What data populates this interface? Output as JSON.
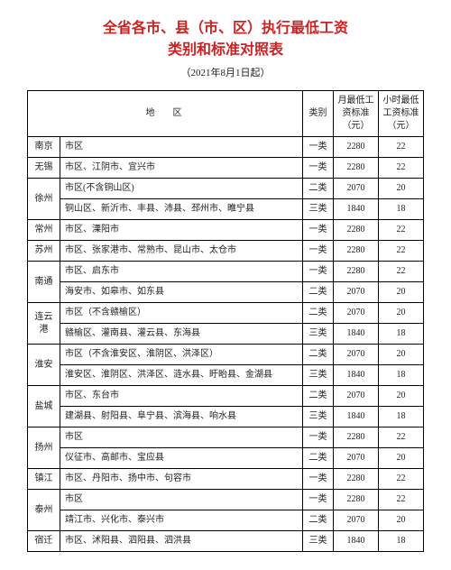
{
  "title_line1": "全省各市、县（市、区）执行最低工资",
  "title_line2": "类别和标准对照表",
  "subtitle": "（2021年8月1日起）",
  "headers": {
    "region": "地区",
    "category": "类别",
    "monthly": "月最低工资标准（元）",
    "hourly": "小时最低工资标准（元）"
  },
  "rows": [
    {
      "city": "南京",
      "area": "市区",
      "cat": "一类",
      "month": "2280",
      "hour": "22",
      "rowspan": 1
    },
    {
      "city": "无锡",
      "area": "市区、江阴市、宜兴市",
      "cat": "一类",
      "month": "2280",
      "hour": "22",
      "rowspan": 1
    },
    {
      "city": "徐州",
      "area": "市区(不含铜山区)",
      "cat": "二类",
      "month": "2070",
      "hour": "20",
      "rowspan": 2
    },
    {
      "city": "",
      "area": "铜山区、新沂市、丰县、沛县、邳州市、睢宁县",
      "cat": "三类",
      "month": "1840",
      "hour": "18"
    },
    {
      "city": "常州",
      "area": "市区、溧阳市",
      "cat": "一类",
      "month": "2280",
      "hour": "22",
      "rowspan": 1
    },
    {
      "city": "苏州",
      "area": "市区、张家港市、常熟市、昆山市、太仓市",
      "cat": "一类",
      "month": "2280",
      "hour": "22",
      "rowspan": 1
    },
    {
      "city": "南通",
      "area": "市区、启东市",
      "cat": "一类",
      "month": "2280",
      "hour": "22",
      "rowspan": 2
    },
    {
      "city": "",
      "area": "海安市、如皋市、如东县",
      "cat": "二类",
      "month": "2070",
      "hour": "20"
    },
    {
      "city": "连云港",
      "area": "市区（不含赣榆区）",
      "cat": "二类",
      "month": "2070",
      "hour": "20",
      "rowspan": 2
    },
    {
      "city": "",
      "area": "赣榆区、灌南县、灌云县、东海县",
      "cat": "三类",
      "month": "1840",
      "hour": "18"
    },
    {
      "city": "淮安",
      "area": "市区（不含淮安区、淮阴区、洪泽区）",
      "cat": "二类",
      "month": "2070",
      "hour": "20",
      "rowspan": 2
    },
    {
      "city": "",
      "area": "淮安区、淮阴区、洪泽区、涟水县、盱眙县、金湖县",
      "cat": "三类",
      "month": "1840",
      "hour": "18"
    },
    {
      "city": "盐城",
      "area": "市区、东台市",
      "cat": "二类",
      "month": "2070",
      "hour": "20",
      "rowspan": 2
    },
    {
      "city": "",
      "area": "建湖县、射阳县、阜宁县、滨海县、响水县",
      "cat": "三类",
      "month": "1840",
      "hour": "18"
    },
    {
      "city": "扬州",
      "area": "市区",
      "cat": "一类",
      "month": "2280",
      "hour": "22",
      "rowspan": 2
    },
    {
      "city": "",
      "area": "仪征市、高邮市、宝应县",
      "cat": "二类",
      "month": "2070",
      "hour": "20"
    },
    {
      "city": "镇江",
      "area": "市区、丹阳市、扬中市、句容市",
      "cat": "一类",
      "month": "2280",
      "hour": "22",
      "rowspan": 1
    },
    {
      "city": "泰州",
      "area": "市区",
      "cat": "一类",
      "month": "2280",
      "hour": "22",
      "rowspan": 2
    },
    {
      "city": "",
      "area": "靖江市、兴化市、泰兴市",
      "cat": "二类",
      "month": "2070",
      "hour": "20"
    },
    {
      "city": "宿迁",
      "area": "市区、沭阳县、泗阳县、泗洪县",
      "cat": "三类",
      "month": "1840",
      "hour": "18",
      "rowspan": 1
    }
  ]
}
